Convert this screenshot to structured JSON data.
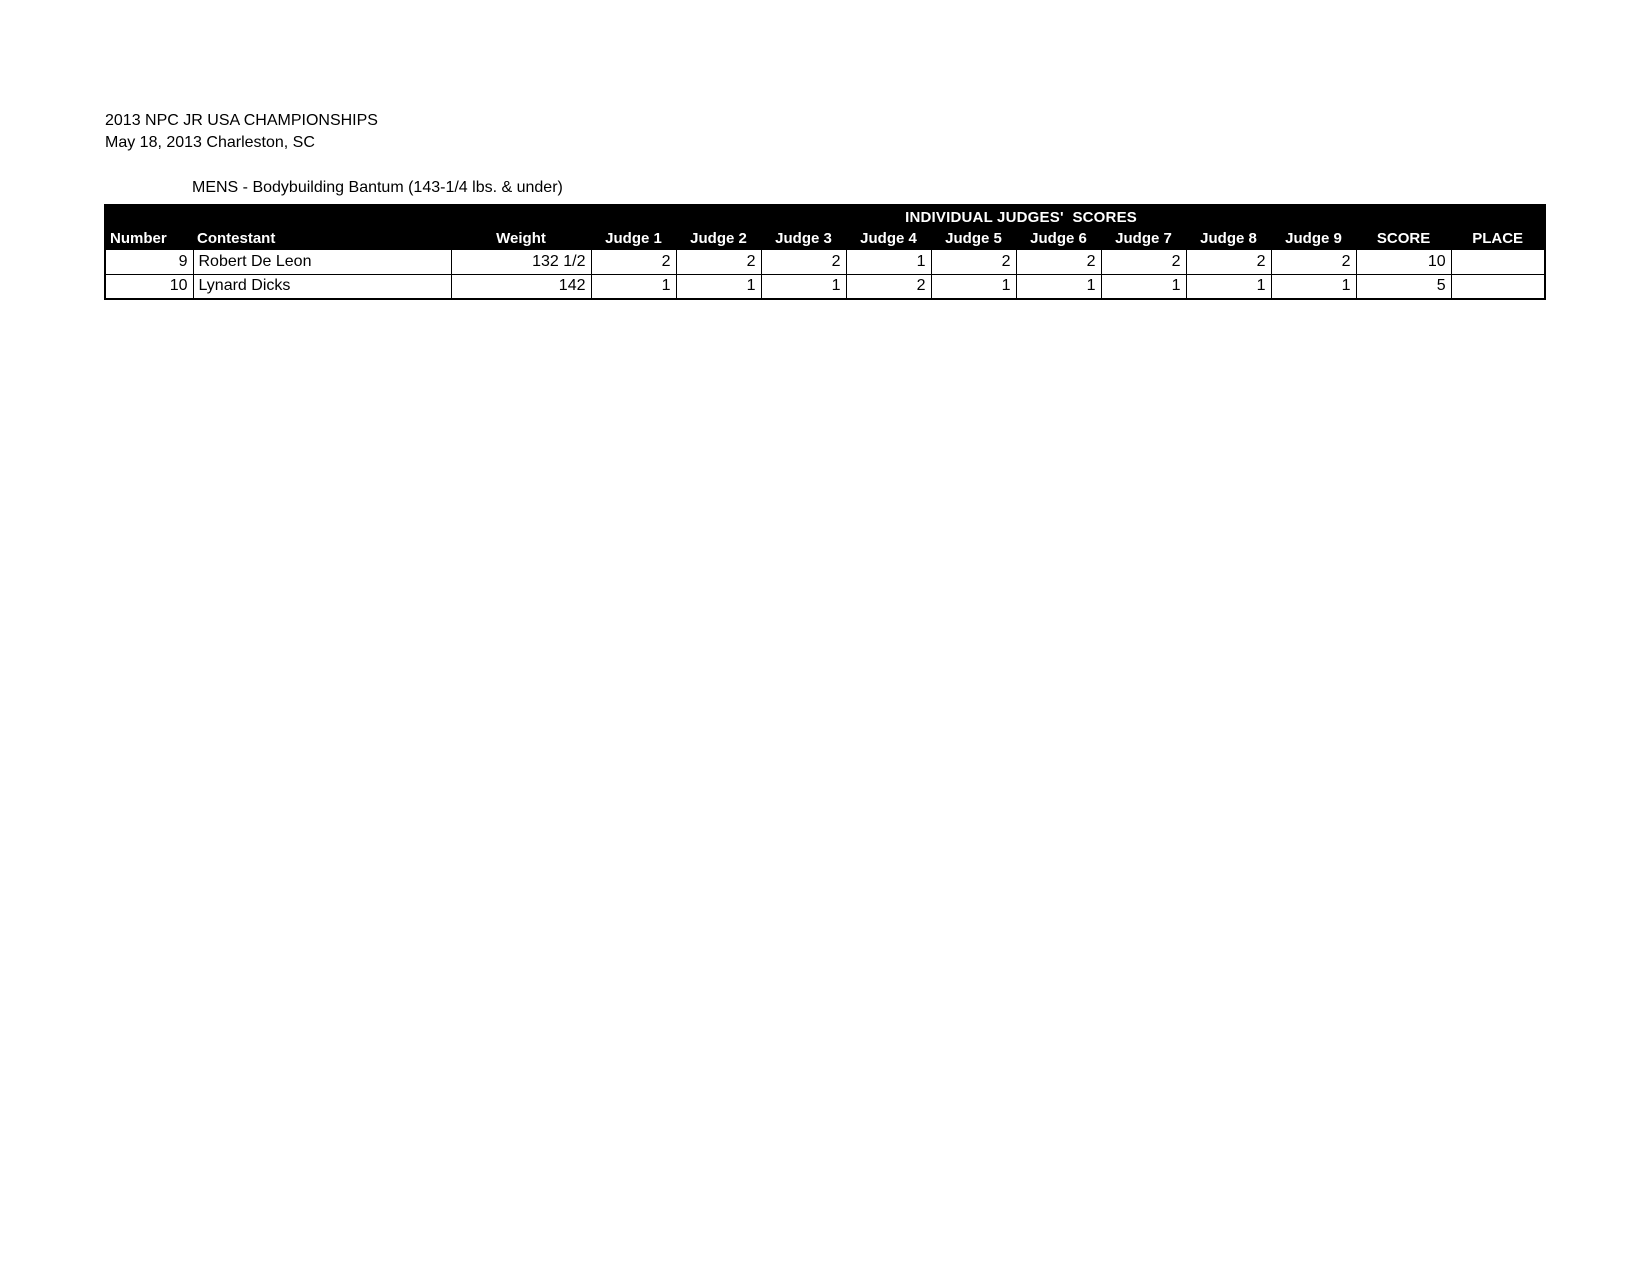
{
  "header": {
    "title": "2013 NPC JR USA CHAMPIONSHIPS",
    "date_location": "May 18, 2013 Charleston, SC",
    "category": "MENS - Bodybuilding Bantum (143-1/4 lbs. & under)"
  },
  "table": {
    "banner": "INDIVIDUAL JUDGES'  SCORES",
    "columns": [
      "Number",
      "Contestant",
      "Weight",
      "Judge 1",
      "Judge 2",
      "Judge 3",
      "Judge 4",
      "Judge 5",
      "Judge 6",
      "Judge 7",
      "Judge 8",
      "Judge 9",
      "SCORE",
      "PLACE"
    ],
    "rows": [
      {
        "number": "9",
        "contestant": "Robert De Leon",
        "weight": "132 1/2",
        "judge_scores": [
          "2",
          "2",
          "2",
          "1",
          "2",
          "2",
          "2",
          "2",
          "2"
        ],
        "score": "10",
        "place": ""
      },
      {
        "number": "10",
        "contestant": "Lynard Dicks",
        "weight": "142",
        "judge_scores": [
          "1",
          "1",
          "1",
          "2",
          "1",
          "1",
          "1",
          "1",
          "1"
        ],
        "score": "5",
        "place": ""
      }
    ]
  },
  "colors": {
    "header_bg": "#000000",
    "header_text": "#ffffff",
    "body_text": "#000000",
    "page_bg": "#ffffff"
  }
}
